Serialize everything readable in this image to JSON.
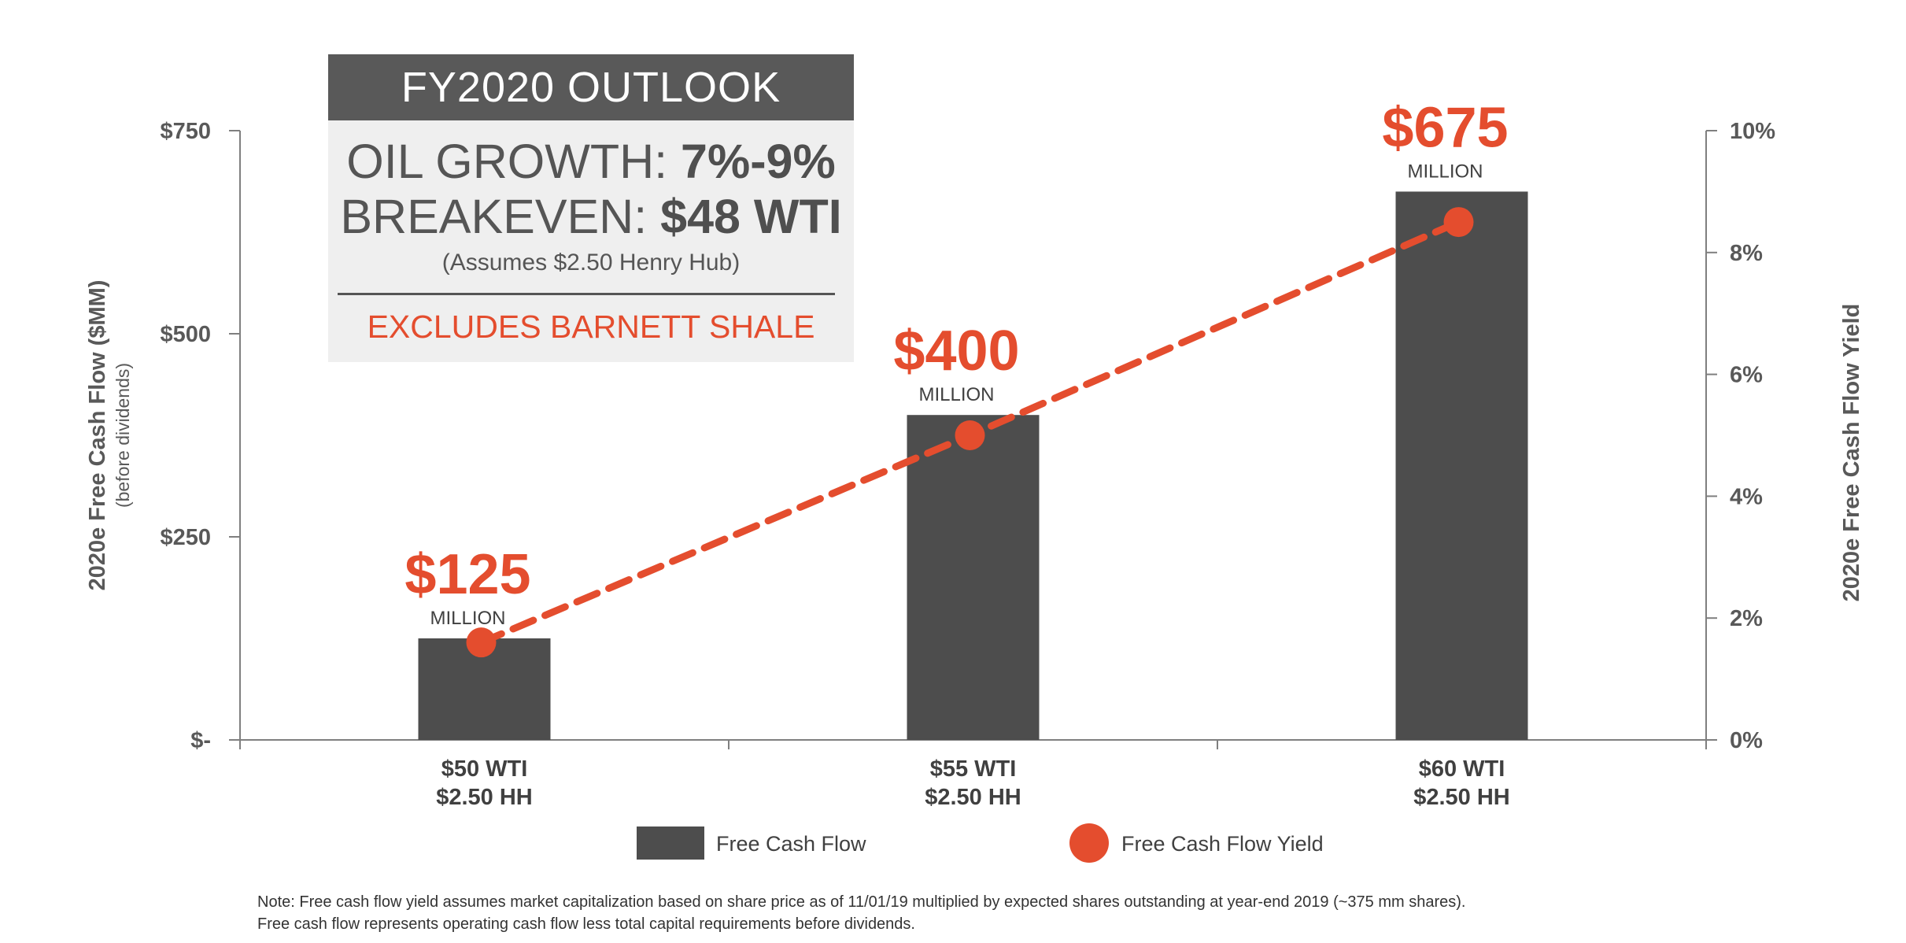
{
  "outlook": {
    "header": "FY2020 OUTLOOK",
    "oil_growth_label": "OIL GROWTH: ",
    "oil_growth_value": "7%-9%",
    "breakeven_label": "BREAKEVEN: ",
    "breakeven_value": "$48 WTI",
    "assumption": "(Assumes $2.50 Henry Hub)",
    "exclusion": "EXCLUDES BARNETT SHALE"
  },
  "chart_data": {
    "type": "bar",
    "categories": [
      [
        "$50 WTI",
        "$2.50 HH"
      ],
      [
        "$55 WTI",
        "$2.50 HH"
      ],
      [
        "$60 WTI",
        "$2.50 HH"
      ]
    ],
    "series": [
      {
        "name": "Free Cash Flow",
        "type": "bar",
        "axis": "left",
        "values": [
          125,
          400,
          675
        ]
      },
      {
        "name": "Free Cash Flow Yield",
        "type": "line",
        "axis": "right",
        "values": [
          1.6,
          5.0,
          8.5
        ]
      }
    ],
    "value_labels": [
      "$125",
      "$400",
      "$675"
    ],
    "value_unit_label": "MILLION",
    "ylabel": "2020e Free Cash Flow ($MM)",
    "ylabel_sub": "(before dividends)",
    "ylim": [
      0,
      750
    ],
    "yticks": [
      0,
      250,
      500,
      750
    ],
    "ytick_labels": [
      "$-",
      "$250",
      "$500",
      "$750"
    ],
    "y2label": "2020e Free Cash Flow Yield",
    "y2lim": [
      0,
      10
    ],
    "y2ticks": [
      0,
      2,
      4,
      6,
      8,
      10
    ],
    "y2tick_labels": [
      "0%",
      "2%",
      "4%",
      "6%",
      "8%",
      "10%"
    ],
    "legend": [
      "Free Cash Flow",
      "Free Cash Flow Yield"
    ],
    "colors": {
      "bar": "#4d4d4d",
      "line": "#e44d2e",
      "axis": "#7f7f7f",
      "label": "#595959",
      "accent": "#e44d2e"
    }
  },
  "note": {
    "line1": "Note: Free cash flow yield assumes market capitalization based on share price as of 11/01/19 multiplied by expected shares outstanding at year-end 2019 (~375 mm shares).",
    "line2": "Free cash flow represents operating cash flow less total capital requirements before dividends."
  }
}
